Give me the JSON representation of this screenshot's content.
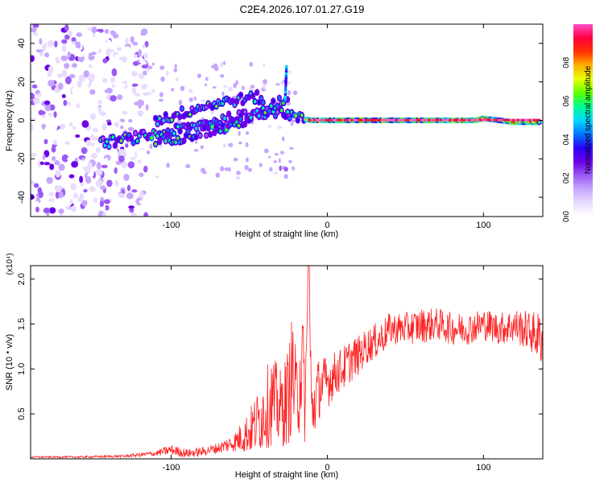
{
  "title": "C2E4.2026.107.01.27.G19",
  "colors": {
    "snr_line": "#ff2020",
    "spectrogram_palette": [
      "#ffffff",
      "#e9dcff",
      "#c7a6ff",
      "#9b59f5",
      "#6a00e8",
      "#2a00ff",
      "#0077ff",
      "#00d8ff",
      "#00ff90",
      "#5cff00",
      "#e8ff00",
      "#ffb000",
      "#ff3000",
      "#ff0040",
      "#ff4fc8"
    ]
  },
  "chart_data": [
    {
      "type": "heatmap",
      "title": "C2E4.2026.107.01.27.G19",
      "xlabel": "Height of straight line (km)",
      "ylabel": "Frequency (Hz)",
      "xlim": [
        -190,
        138
      ],
      "ylim": [
        -50,
        50
      ],
      "x_ticks": [
        -100,
        0,
        100
      ],
      "y_ticks": [
        -40,
        -20,
        0,
        20,
        40
      ],
      "colorbar": {
        "label": "Normalized spectral amplitude",
        "range": [
          0,
          1
        ],
        "ticks": [
          "0.0",
          "0.2",
          "0.4",
          "0.6",
          "0.8"
        ]
      },
      "carrier_tracks": [
        {
          "x": [
            -145,
            -130,
            -115,
            -100,
            -85,
            -70,
            -55,
            -40,
            -30,
            -24,
            -18,
            -10,
            0,
            20,
            40,
            60,
            80,
            95,
            100,
            110,
            120,
            130,
            136
          ],
          "y": [
            -12,
            -10,
            -8,
            -6,
            -3,
            0,
            2,
            4,
            5,
            3,
            1,
            0,
            0,
            0,
            0,
            0,
            0,
            0,
            1,
            0,
            -1,
            -1,
            -1
          ]
        },
        {
          "x": [
            -110,
            -95,
            -80,
            -65,
            -50,
            -40,
            -30,
            -25
          ],
          "y": [
            -10,
            -9,
            -6,
            -4,
            1,
            5,
            10,
            12
          ]
        },
        {
          "x": [
            -110,
            -100,
            -85,
            -70,
            -55,
            -45,
            -40
          ],
          "y": [
            0,
            2,
            6,
            9,
            11,
            12,
            10
          ]
        }
      ],
      "noise_region": {
        "x": [
          -190,
          -115
        ],
        "y": [
          -50,
          50
        ]
      }
    },
    {
      "type": "line",
      "xlabel": "Height of straight line (km)",
      "ylabel": "SNR (10 * v/v)",
      "y_multiplier": "(x10⁴)",
      "xlim": [
        -190,
        138
      ],
      "ylim": [
        0,
        2.15
      ],
      "x_ticks": [
        -100,
        0,
        100
      ],
      "y_ticks": [
        0.5,
        1.0,
        1.5,
        2.0
      ],
      "series": [
        {
          "x": [
            -190,
            -160,
            -130,
            -110,
            -100,
            -90,
            -80,
            -70,
            -60,
            -50,
            -45,
            -40,
            -35,
            -30,
            -25,
            -22,
            -20,
            -18,
            -16,
            -14,
            -12,
            -10,
            -8,
            -5,
            0,
            5,
            10,
            15,
            20,
            25,
            30,
            35,
            40,
            50,
            60,
            70,
            80,
            90,
            100,
            110,
            120,
            130,
            136
          ],
          "y": [
            0.02,
            0.02,
            0.03,
            0.06,
            0.1,
            0.06,
            0.08,
            0.12,
            0.18,
            0.3,
            0.4,
            0.55,
            0.65,
            0.55,
            0.7,
            1.0,
            0.6,
            0.95,
            1.1,
            0.6,
            2.15,
            0.5,
            0.65,
            0.8,
            0.85,
            0.95,
            1.0,
            1.1,
            1.15,
            1.25,
            1.3,
            1.35,
            1.45,
            1.45,
            1.48,
            1.5,
            1.45,
            1.45,
            1.5,
            1.45,
            1.48,
            1.42,
            1.35
          ],
          "noise_amplitude": [
            0.01,
            0.01,
            0.015,
            0.03,
            0.06,
            0.05,
            0.05,
            0.06,
            0.1,
            0.25,
            0.35,
            0.45,
            0.5,
            0.45,
            0.55,
            0.7,
            0.55,
            0.7,
            0.6,
            0.55,
            0.2,
            0.4,
            0.4,
            0.35,
            0.3,
            0.25,
            0.25,
            0.25,
            0.22,
            0.2,
            0.2,
            0.2,
            0.18,
            0.18,
            0.2,
            0.18,
            0.18,
            0.18,
            0.18,
            0.18,
            0.2,
            0.22,
            0.3
          ]
        }
      ]
    }
  ]
}
